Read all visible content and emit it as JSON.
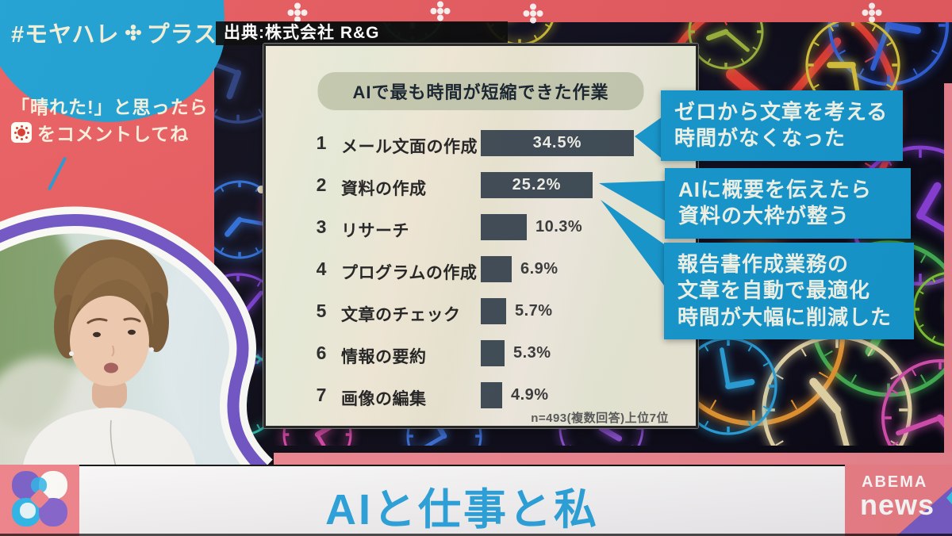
{
  "program": {
    "hashtag_prefix": "#モヤハレ",
    "hashtag_suffix": "プラス",
    "invite_line1": "「晴れた!」と思ったら",
    "invite_line2": "をコメントしてね"
  },
  "source": {
    "label": "出典:株式会社 R&G"
  },
  "chart_data": {
    "type": "bar",
    "title": "AIで最も時間が短縮できた作業",
    "orientation": "horizontal",
    "xlim": [
      0,
      40
    ],
    "items": [
      {
        "rank": "1",
        "label": "メール文面の作成",
        "value": 34.5,
        "pct": "34.5%"
      },
      {
        "rank": "2",
        "label": "資料の作成",
        "value": 25.2,
        "pct": "25.2%"
      },
      {
        "rank": "3",
        "label": "リサーチ",
        "value": 10.3,
        "pct": "10.3%"
      },
      {
        "rank": "4",
        "label": "プログラムの作成",
        "value": 6.9,
        "pct": "6.9%"
      },
      {
        "rank": "5",
        "label": "文章のチェック",
        "value": 5.7,
        "pct": "5.7%"
      },
      {
        "rank": "6",
        "label": "情報の要約",
        "value": 5.3,
        "pct": "5.3%"
      },
      {
        "rank": "7",
        "label": "画像の編集",
        "value": 4.9,
        "pct": "4.9%"
      }
    ],
    "footnote": "n=493(複数回答)上位7位",
    "bar_color": "#3e4a54",
    "legend": "none",
    "grid": false
  },
  "callouts": [
    {
      "text": "ゼロから文章を考える\n時間がなくなった"
    },
    {
      "text": "AIに概要を伝えたら\n資料の大枠が整う"
    },
    {
      "text": "報告書作成業務の\n文章を自動で最適化\n時間が大幅に削減した"
    }
  ],
  "banner": {
    "title": "AIと仕事と私"
  },
  "logo": {
    "line1": "ABEMA",
    "line2": "news"
  },
  "icons": {
    "hashtag_clover": "clover-icon",
    "comment_sun": "sun-comment-icon",
    "station_pinwheel": "pinwheel-logo"
  },
  "colors": {
    "callout_blue": "#1598cf",
    "panel_red": "#e65a5e",
    "bar": "#3e4a54",
    "banner_text_blue": "#2aa3dc",
    "hashtag_blob_blue": "#1b9fd2"
  }
}
